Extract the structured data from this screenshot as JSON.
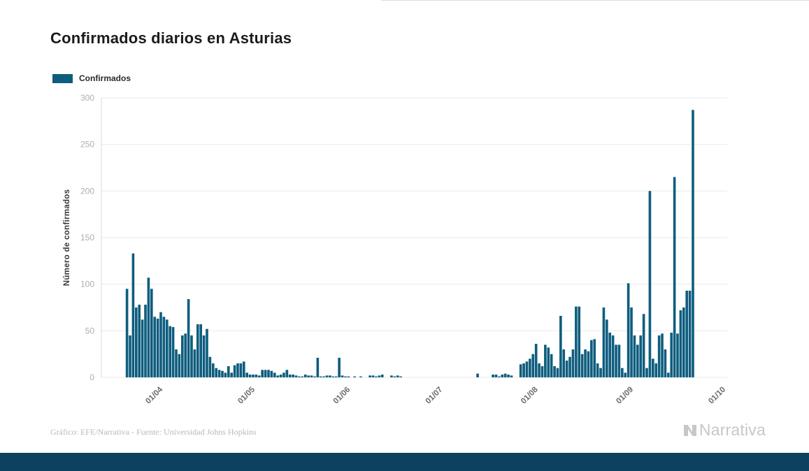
{
  "footer": {
    "credit": "Gráfico: EFE/Narrativa - Fuente: Universidad Johns Hopkins",
    "brand": "Narrativa"
  },
  "colors": {
    "bar": "#0e5d7e",
    "legend_swatch": "#0e5d7e",
    "grid": "#e9e9e9",
    "axis_line": "#d9d9d9",
    "y_tick_text": "#adadb2",
    "x_tick_text": "#6c6c70",
    "footer_strip": "#0d4160",
    "brand_gray": "#c7c7c7",
    "title_text": "#1b1b1b"
  },
  "chart_data": {
    "type": "bar",
    "title": "Confirmados diarios en Asturias",
    "series_name": "Confirmados",
    "xlabel": "",
    "ylabel": "Número de confirmados",
    "ylim": [
      0,
      300
    ],
    "yticks": [
      0,
      50,
      100,
      150,
      200,
      250,
      300
    ],
    "grid": true,
    "legend_position": "top-left",
    "xticks": [
      {
        "label": "01/04",
        "date": "2020-04-01"
      },
      {
        "label": "01/05",
        "date": "2020-05-01"
      },
      {
        "label": "01/06",
        "date": "2020-06-01"
      },
      {
        "label": "01/07",
        "date": "2020-07-01"
      },
      {
        "label": "01/08",
        "date": "2020-08-01"
      },
      {
        "label": "01/09",
        "date": "2020-09-01"
      },
      {
        "label": "01/10",
        "date": "2020-10-01"
      }
    ],
    "start_date": "2020-03-21",
    "frequency": "daily",
    "values": [
      95,
      45,
      133,
      75,
      78,
      62,
      78,
      107,
      95,
      65,
      63,
      70,
      65,
      62,
      55,
      54,
      30,
      25,
      45,
      47,
      84,
      45,
      30,
      57,
      57,
      45,
      52,
      22,
      15,
      10,
      8,
      7,
      5,
      12,
      5,
      13,
      15,
      15,
      17,
      5,
      3,
      3,
      3,
      2,
      8,
      8,
      8,
      7,
      5,
      2,
      3,
      5,
      8,
      3,
      3,
      2,
      1,
      1,
      3,
      2,
      2,
      1,
      21,
      1,
      1,
      2,
      2,
      1,
      1,
      21,
      2,
      1,
      1,
      0,
      1,
      0,
      1,
      0,
      0,
      2,
      2,
      1,
      2,
      3,
      0,
      0,
      2,
      1,
      2,
      1,
      0,
      0,
      0,
      0,
      0,
      0,
      0,
      0,
      0,
      0,
      0,
      0,
      0,
      0,
      0,
      0,
      0,
      0,
      0,
      0,
      0,
      0,
      0,
      0,
      4,
      0,
      0,
      0,
      0,
      3,
      3,
      1,
      3,
      4,
      3,
      2,
      0,
      0,
      14,
      15,
      17,
      20,
      25,
      36,
      15,
      12,
      35,
      32,
      25,
      12,
      10,
      66,
      30,
      18,
      22,
      30,
      76,
      76,
      25,
      30,
      28,
      40,
      41,
      15,
      10,
      75,
      62,
      48,
      45,
      35,
      35,
      10,
      5,
      101,
      75,
      45,
      35,
      45,
      68,
      10,
      200,
      20,
      15,
      45,
      47,
      30,
      5,
      48,
      215,
      47,
      72,
      75,
      93,
      93,
      287
    ]
  }
}
